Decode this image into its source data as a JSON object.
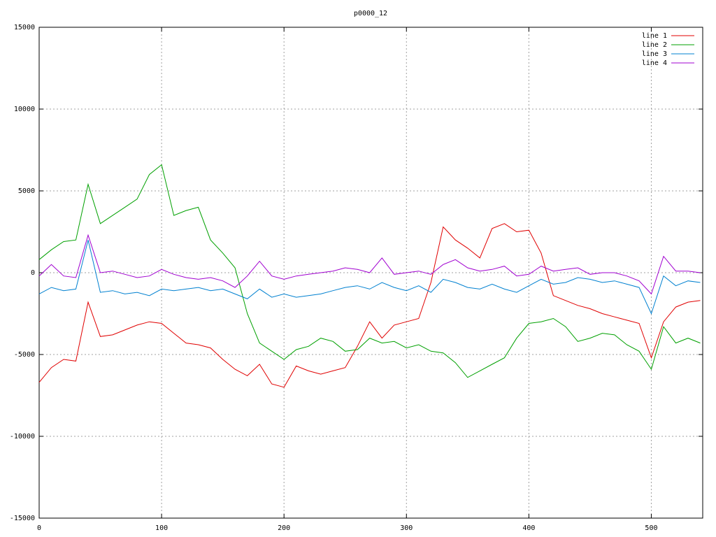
{
  "chart_data": {
    "type": "line",
    "title": "p0000_12",
    "x": [
      0,
      10,
      20,
      30,
      40,
      50,
      60,
      70,
      80,
      90,
      100,
      110,
      120,
      130,
      140,
      150,
      160,
      170,
      180,
      190,
      200,
      210,
      220,
      230,
      240,
      250,
      260,
      270,
      280,
      290,
      300,
      310,
      320,
      330,
      340,
      350,
      360,
      370,
      380,
      390,
      400,
      410,
      420,
      430,
      440,
      450,
      460,
      470,
      480,
      490,
      500,
      510,
      520,
      530,
      540
    ],
    "series": [
      {
        "name": "line 1",
        "color": "#e00000",
        "values": [
          -6700,
          -5800,
          -5300,
          -5400,
          -1800,
          -3900,
          -3800,
          -3500,
          -3200,
          -3000,
          -3100,
          -3700,
          -4300,
          -4400,
          -4600,
          -5300,
          -5900,
          -6300,
          -5600,
          -6800,
          -7000,
          -5700,
          -6000,
          -6200,
          -6000,
          -5800,
          -4500,
          -3000,
          -4000,
          -3200,
          -3000,
          -2800,
          -600,
          2800,
          2000,
          1500,
          900,
          2700,
          3000,
          2500,
          2600,
          1200,
          -1400,
          -1700,
          -2000,
          -2200,
          -2500,
          -2700,
          -2900,
          -3100,
          -5200,
          -3000,
          -2100,
          -1800,
          -1700
        ]
      },
      {
        "name": "line 2",
        "color": "#00a000",
        "values": [
          800,
          1400,
          1900,
          2000,
          5400,
          3000,
          3500,
          4000,
          4500,
          6000,
          6600,
          3500,
          3800,
          4000,
          2000,
          1200,
          300,
          -2500,
          -4300,
          -4800,
          -5300,
          -4700,
          -4500,
          -4000,
          -4200,
          -4800,
          -4700,
          -4000,
          -4300,
          -4200,
          -4600,
          -4400,
          -4800,
          -4900,
          -5500,
          -6400,
          -6000,
          -5600,
          -5200,
          -4000,
          -3100,
          -3000,
          -2800,
          -3300,
          -4200,
          -4000,
          -3700,
          -3800,
          -4400,
          -4800,
          -5900,
          -3300,
          -4300,
          -4000,
          -4300
        ]
      },
      {
        "name": "line 3",
        "color": "#0080d0",
        "values": [
          -1300,
          -900,
          -1100,
          -1000,
          2000,
          -1200,
          -1100,
          -1300,
          -1200,
          -1400,
          -1000,
          -1100,
          -1000,
          -900,
          -1100,
          -1000,
          -1300,
          -1600,
          -1000,
          -1500,
          -1300,
          -1500,
          -1400,
          -1300,
          -1100,
          -900,
          -800,
          -1000,
          -600,
          -900,
          -1100,
          -800,
          -1200,
          -400,
          -600,
          -900,
          -1000,
          -700,
          -1000,
          -1200,
          -800,
          -400,
          -700,
          -600,
          -300,
          -400,
          -600,
          -500,
          -700,
          -900,
          -2500,
          -200,
          -800,
          -500,
          -600
        ]
      },
      {
        "name": "line 4",
        "color": "#a000d0",
        "values": [
          -200,
          500,
          -200,
          -300,
          2300,
          0,
          100,
          -100,
          -300,
          -200,
          200,
          -100,
          -300,
          -400,
          -300,
          -500,
          -900,
          -200,
          700,
          -200,
          -400,
          -200,
          -100,
          0,
          100,
          300,
          200,
          0,
          900,
          -100,
          0,
          100,
          -100,
          500,
          800,
          300,
          100,
          200,
          400,
          -200,
          -100,
          400,
          100,
          200,
          300,
          -100,
          0,
          0,
          -200,
          -500,
          -1300,
          1000,
          100,
          100,
          0
        ]
      }
    ],
    "xlim": [
      0,
      542
    ],
    "ylim": [
      -15000,
      15000
    ],
    "xticks": [
      0,
      100,
      200,
      300,
      400,
      500
    ],
    "yticks": [
      -15000,
      -10000,
      -5000,
      0,
      5000,
      10000,
      15000
    ],
    "grid": true,
    "legend": "top right"
  }
}
